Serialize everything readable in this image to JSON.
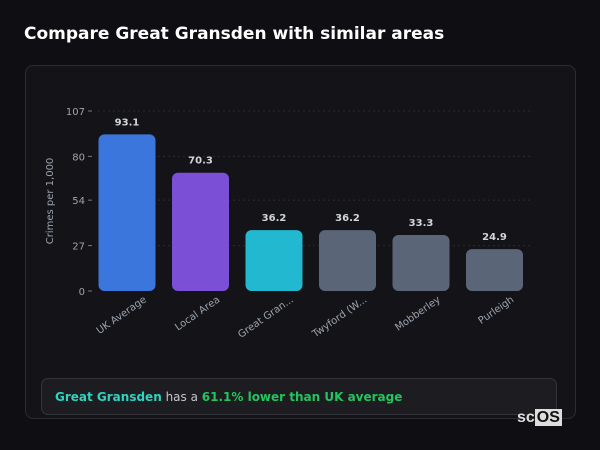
{
  "title": "Compare Great Gransden with similar areas",
  "chart_data": {
    "type": "bar",
    "categories": [
      "UK Average",
      "Local Area",
      "Great Gran...",
      "Twyford (W...",
      "Mobberley",
      "Purleigh"
    ],
    "values": [
      93.1,
      70.3,
      36.2,
      36.2,
      33.3,
      24.9
    ],
    "colors": [
      "#3b76dc",
      "#7b4fd6",
      "#22b8cf",
      "#5a6578",
      "#5a6578",
      "#5a6578"
    ],
    "ylabel": "Crimes per 1,000",
    "yticks": [
      0,
      27,
      54,
      80,
      107
    ],
    "ylim": [
      0,
      107
    ],
    "grid": true
  },
  "summary": {
    "area": "Great Gransden",
    "middle": " has a ",
    "result": "61.1% lower than UK average"
  },
  "logo": {
    "a": "sc",
    "b": "OS"
  }
}
